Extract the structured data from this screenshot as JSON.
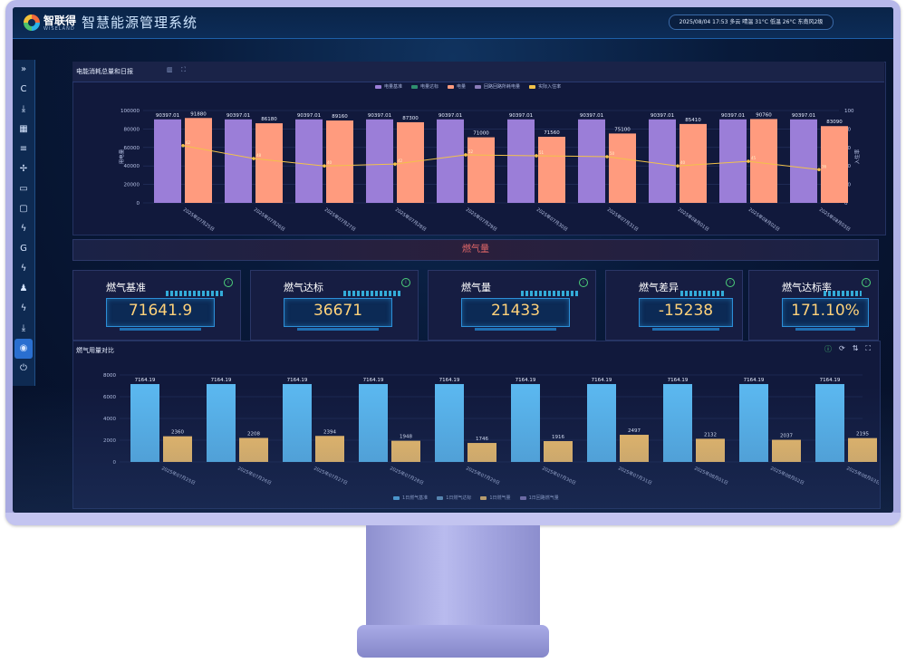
{
  "header": {
    "brand_cn": "智联得",
    "brand_en": "WISELAND",
    "system_title": "智慧能源管理系统",
    "status": "2025/08/04 17:53 多云 晴温 31°C 低温 26°C 东南风2级"
  },
  "sidebar": {
    "items": [
      {
        "icon": "expand-icon",
        "glyph": "»"
      },
      {
        "icon": "refresh-icon",
        "glyph": "C"
      },
      {
        "icon": "download-icon",
        "glyph": "⤓"
      },
      {
        "icon": "grid-icon",
        "glyph": "▦"
      },
      {
        "icon": "list-icon",
        "glyph": "≡"
      },
      {
        "icon": "fan-icon",
        "glyph": "✢"
      },
      {
        "icon": "monitor-icon",
        "glyph": "▭"
      },
      {
        "icon": "device-icon",
        "glyph": "▢"
      },
      {
        "icon": "power-icon",
        "glyph": "ϟ"
      },
      {
        "icon": "gauge-icon",
        "glyph": "G"
      },
      {
        "icon": "bolt-icon",
        "glyph": "ϟ"
      },
      {
        "icon": "user-icon",
        "glyph": "♟"
      },
      {
        "icon": "flash-icon",
        "glyph": "ϟ"
      },
      {
        "icon": "export-icon",
        "glyph": "⤓"
      },
      {
        "icon": "gas-icon",
        "glyph": "◉"
      },
      {
        "icon": "logout-icon",
        "glyph": "⏻"
      }
    ],
    "active_index": 14
  },
  "top_panel": {
    "title": "电能消耗总量和日报",
    "legend": [
      "电量基准",
      "电量达标",
      "电量",
      "回路回路所耗电量",
      "实际入住率"
    ]
  },
  "chart_data": [
    {
      "type": "bar",
      "categories": [
        "2025年07月25日",
        "2025年07月26日",
        "2025年07月27日",
        "2025年07月28日",
        "2025年07月29日",
        "2025年07月30日",
        "2025年07月31日",
        "2025年08月01日",
        "2025年08月02日",
        "2025年08月03日"
      ],
      "series": [
        {
          "name": "电量基准",
          "values": [
            90397.01,
            90397.01,
            90397.01,
            90397.01,
            90397.01,
            90397.01,
            90397.01,
            90397.01,
            90397.01,
            90397.01
          ]
        },
        {
          "name": "电量",
          "values": [
            91880,
            86180,
            89160,
            87300,
            71000,
            71560,
            75100,
            85410,
            90760,
            83090
          ]
        },
        {
          "name": "实际入住率",
          "type": "line",
          "axis": "right",
          "values": [
            62,
            48,
            40,
            42,
            52,
            51,
            50,
            40,
            45,
            36
          ]
        }
      ],
      "ylim": [
        0,
        100000
      ],
      "yticks": [
        0,
        20000,
        40000,
        60000,
        80000,
        100000
      ],
      "y2lim": [
        0,
        100
      ],
      "y2ticks": [
        0,
        20,
        40,
        60,
        80,
        100
      ],
      "ylabel": "用电量",
      "y2label": "入住率",
      "colors": {
        "baseline": "#9b7ed8",
        "usage": "#ff9b7e",
        "line": "#f2c24a"
      }
    },
    {
      "type": "bar",
      "categories": [
        "2025年07月25日",
        "2025年07月26日",
        "2025年07月27日",
        "2025年07月28日",
        "2025年07月29日",
        "2025年07月30日",
        "2025年07月31日",
        "2025年08月01日",
        "2025年08月02日",
        "2025年08月03日"
      ],
      "series": [
        {
          "name": "1日燃气基准",
          "values": [
            7164.19,
            7164.19,
            7164.19,
            7164.19,
            7164.19,
            7164.19,
            7164.19,
            7164.19,
            7164.19,
            7164.19
          ]
        },
        {
          "name": "1日燃气量",
          "values": [
            2360,
            2208,
            2394,
            1948,
            1746,
            1916,
            2497,
            2132,
            2037,
            2195
          ]
        }
      ],
      "ylim": [
        0,
        8000
      ],
      "yticks": [
        0,
        2000,
        4000,
        6000,
        8000
      ],
      "legend": [
        "1日燃气基准",
        "1日燃气达标",
        "1日燃气量",
        "1日回路燃气量"
      ],
      "colors": {
        "baseline": "#5bb8f0",
        "usage": "#f7c26a"
      }
    }
  ],
  "section": {
    "title": "燃气量"
  },
  "kpis": [
    {
      "label": "燃气基准",
      "value": "71641.9"
    },
    {
      "label": "燃气达标",
      "value": "36671"
    },
    {
      "label": "燃气量",
      "value": "21433"
    },
    {
      "label": "燃气差异",
      "value": "-15238"
    },
    {
      "label": "燃气达标率",
      "value": "171.10%"
    }
  ],
  "bottom_panel": {
    "title": "燃气用量对比",
    "controls": [
      "info-icon",
      "refresh-icon",
      "sort-icon",
      "fullscreen-icon"
    ],
    "control_glyphs": [
      "ⓘ",
      "⟳",
      "⇅",
      "⛶"
    ]
  }
}
